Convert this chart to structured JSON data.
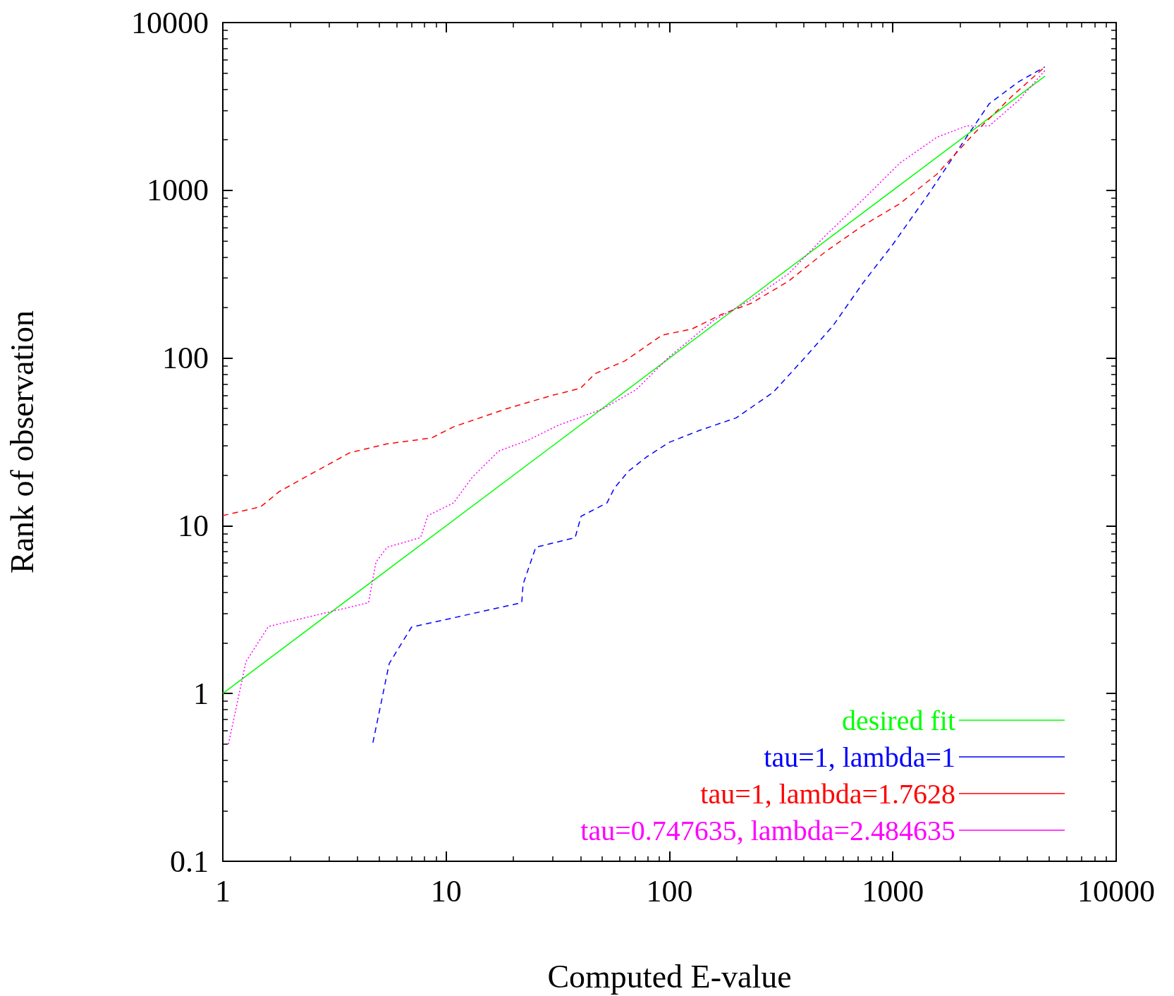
{
  "chart_data": {
    "type": "line",
    "xlabel": "Computed E-value",
    "ylabel": "Rank of observation",
    "log": "xy",
    "xlim": [
      1,
      10000
    ],
    "ylim": [
      0.1,
      10000
    ],
    "xticks": [
      1,
      10,
      100,
      1000,
      10000
    ],
    "yticks": [
      0.1,
      1,
      10,
      100,
      1000,
      10000
    ],
    "grid": false,
    "legend": "bottom right",
    "marker": "none",
    "series": [
      {
        "name": "desired fit",
        "color": "#00ff00",
        "line_style": "solid",
        "x": [
          1,
          4800
        ],
        "values": [
          1,
          4800
        ]
      },
      {
        "name": "tau=1, lambda=1",
        "color": "#0000ff",
        "line_style": "dashed",
        "x": [
          4.7,
          5.56,
          7.0,
          21.8,
          22.1,
          25.2,
          37.8,
          40.2,
          52.5,
          56.7,
          65.6,
          79.5,
          100,
          136,
          199,
          292,
          413,
          540,
          733,
          1000,
          1460,
          2140,
          2700,
          3660,
          4790
        ],
        "values": [
          0.51,
          1.51,
          2.49,
          3.48,
          4.49,
          7.45,
          8.5,
          11.4,
          13.7,
          16.8,
          21.2,
          25.9,
          31.5,
          37,
          44,
          62.7,
          104,
          156,
          279,
          476,
          970,
          2080,
          3280,
          4440,
          5440
        ]
      },
      {
        "name": "tau=1, lambda=1.7628",
        "color": "#ff0000",
        "line_style": "dashed",
        "x": [
          1,
          1.48,
          1.79,
          2.34,
          3.71,
          5.44,
          8.6,
          10.8,
          18.5,
          29.4,
          39.9,
          46.5,
          63,
          92.7,
          126,
          171,
          232,
          341,
          500,
          733,
          1076,
          1577,
          2310,
          3400,
          4790
        ],
        "values": [
          11.5,
          13,
          16,
          19.5,
          27.3,
          30.8,
          33.4,
          38.9,
          49.7,
          59.6,
          66,
          80.8,
          96,
          137,
          149,
          182,
          212,
          287,
          431,
          615,
          833,
          1250,
          2180,
          3620,
          5440
        ]
      },
      {
        "name": "tau=0.747635, lambda=2.484635",
        "color": "#ff00ff",
        "line_style": "dotted",
        "x": [
          1.06,
          1.27,
          1.6,
          4.49,
          4.85,
          5.44,
          7.68,
          8.28,
          10.8,
          13.1,
          17.2,
          23.3,
          31.7,
          50.2,
          70.8,
          100,
          158,
          232,
          341,
          500,
          733,
          1076,
          1577,
          2140,
          2700,
          3660,
          4790
        ],
        "values": [
          0.5,
          1.55,
          2.51,
          3.48,
          6.08,
          7.45,
          8.5,
          11.5,
          13.7,
          19.5,
          27.9,
          32.4,
          39.7,
          49.7,
          64.7,
          102,
          168,
          223,
          318,
          538,
          877,
          1455,
          2075,
          2420,
          2420,
          3440,
          5170
        ]
      }
    ]
  }
}
